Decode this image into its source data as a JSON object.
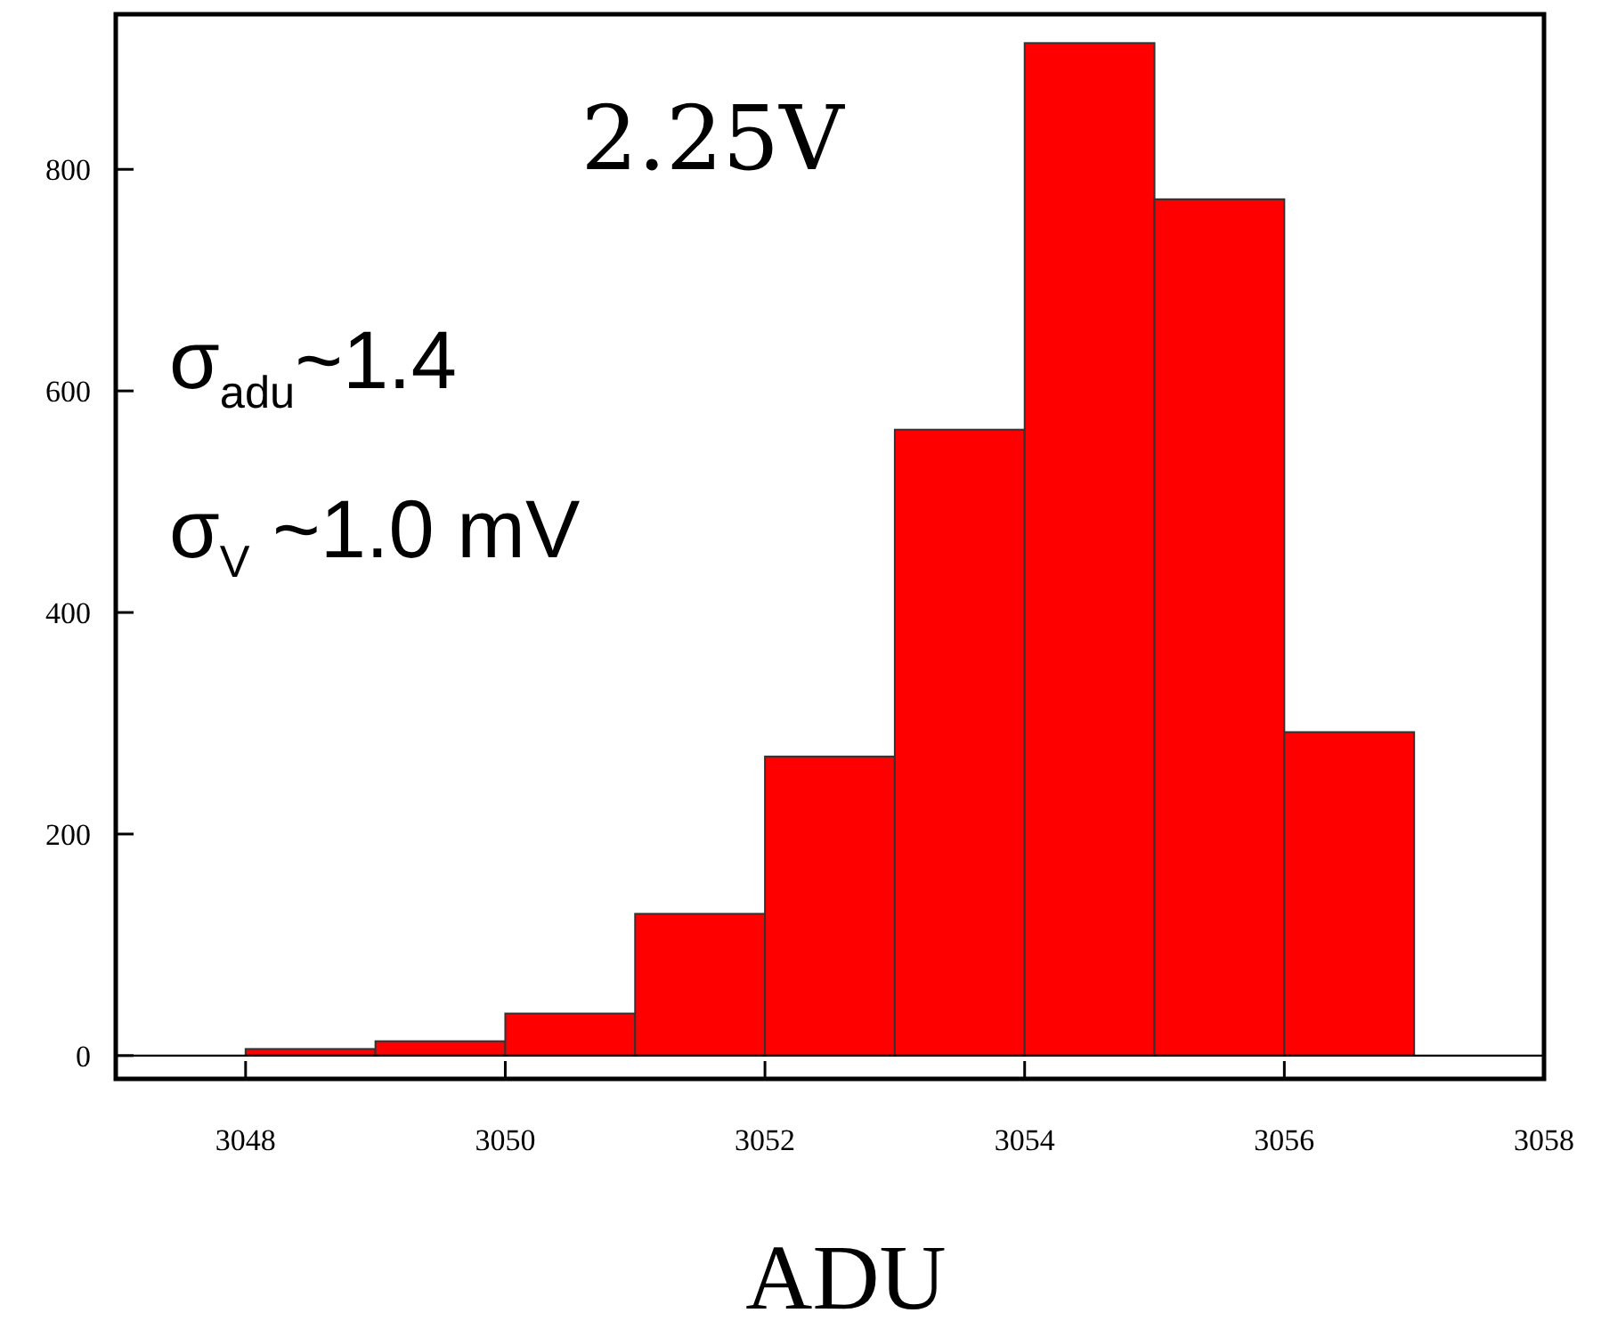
{
  "chart_data": {
    "type": "histogram",
    "xlabel": "ADU",
    "bins": [
      3048,
      3049,
      3050,
      3051,
      3052,
      3053,
      3054,
      3055,
      3056,
      3057
    ],
    "values": [
      6,
      13,
      38,
      128,
      270,
      565,
      914,
      773,
      292
    ],
    "color": "#ff0000",
    "xlim": [
      3047,
      3058
    ],
    "xticks": [
      3048,
      3050,
      3052,
      3054,
      3056,
      3058
    ],
    "ylim": [
      -21,
      940
    ],
    "yticks": [
      0,
      200,
      400,
      600,
      800
    ],
    "ref_lines": [
      {
        "axis": "y",
        "value": 0,
        "color": "#000000"
      }
    ],
    "annotations": [
      "2.25V",
      "σ$_{adu}$~1.4",
      "σ$_{V}$ ~1.0  mV"
    ],
    "grid": false
  }
}
